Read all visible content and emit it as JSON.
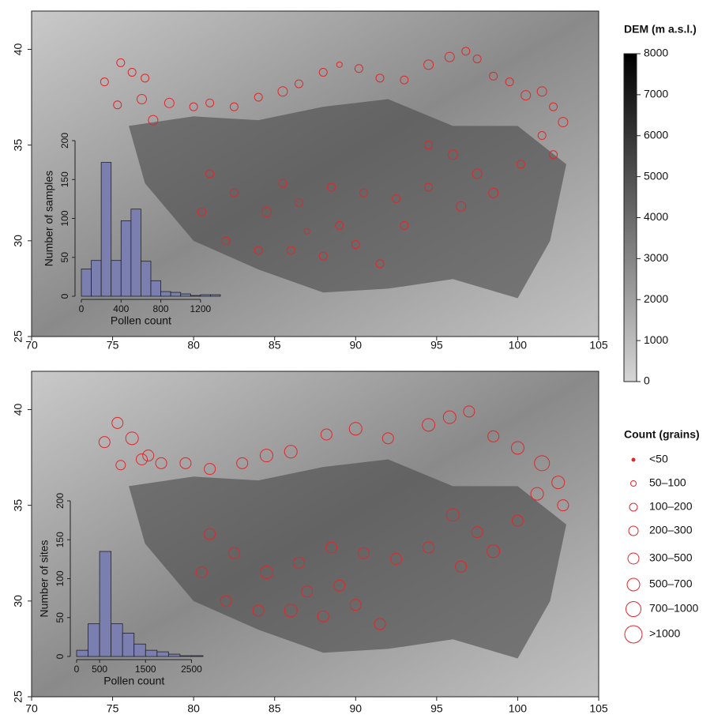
{
  "maps": [
    {
      "xlim": [
        70,
        105
      ],
      "ylim": [
        25,
        42
      ],
      "xticks": [
        70,
        75,
        80,
        85,
        90,
        95,
        100,
        105
      ],
      "yticks": [
        25,
        30,
        35,
        40
      ],
      "sites": {
        "lon": [
          74.5,
          75.5,
          76.2,
          77,
          75.3,
          76.8,
          77.5,
          78.5,
          80,
          81,
          82.5,
          84,
          85.5,
          86.5,
          88,
          89,
          90.2,
          91.5,
          93,
          94.5,
          95.8,
          96.8,
          97.5,
          98.5,
          99.5,
          100.5,
          101.5,
          102.2,
          102.8,
          101.5,
          102.2,
          100.2,
          96,
          97.5,
          98.5,
          96.5,
          94.5,
          92.5,
          90.5,
          88.5,
          86.5,
          84.5,
          82.5,
          81,
          80.5,
          82,
          84,
          86,
          88,
          90,
          91.5,
          89,
          87,
          85.5,
          93,
          94.5
        ],
        "lat": [
          38.3,
          39.3,
          38.8,
          38.5,
          37.1,
          37.4,
          36.3,
          37.2,
          37,
          37.2,
          37,
          37.5,
          37.8,
          38.2,
          38.8,
          39.2,
          39,
          38.5,
          38.4,
          39.2,
          39.6,
          39.9,
          39.5,
          38.6,
          38.3,
          37.6,
          37.8,
          37,
          36.2,
          35.5,
          34.5,
          34,
          34.5,
          33.5,
          32.5,
          31.8,
          32.8,
          32.2,
          32.5,
          32.8,
          32,
          31.5,
          32.5,
          33.5,
          31.5,
          30,
          29.5,
          29.5,
          29.2,
          29.8,
          28.8,
          30.8,
          30.5,
          33,
          30.8,
          35
        ],
        "count_class": [
          2,
          2,
          2,
          2,
          2,
          3,
          3,
          3,
          2,
          2,
          2,
          2,
          3,
          2,
          2,
          1,
          2,
          2,
          2,
          3,
          3,
          2,
          2,
          2,
          2,
          3,
          3,
          2,
          3,
          2,
          2,
          2,
          3,
          3,
          3,
          3,
          2,
          2,
          2,
          2,
          2,
          3,
          2,
          2,
          2,
          2,
          2,
          2,
          2,
          2,
          2,
          2,
          1,
          2,
          2,
          2
        ]
      },
      "histogram": {
        "type": "histogram",
        "bins": [
          0,
          100,
          200,
          300,
          400,
          500,
          600,
          700,
          800,
          900,
          1000,
          1100,
          1200,
          1300,
          1400
        ],
        "counts": [
          35,
          46,
          172,
          46,
          97,
          112,
          45,
          20,
          6,
          5,
          3,
          1,
          2,
          2
        ],
        "xlim": [
          0,
          1400
        ],
        "ylim": [
          0,
          200
        ],
        "xticks": [
          0,
          400,
          800,
          1200
        ],
        "yticks": [
          0,
          50,
          100,
          150,
          200
        ],
        "xlabel": "Pollen count",
        "ylabel": "Number of samples",
        "color": "#7b7fb0"
      }
    },
    {
      "xlim": [
        70,
        105
      ],
      "ylim": [
        25,
        42
      ],
      "xticks": [
        70,
        75,
        80,
        85,
        90,
        95,
        100,
        105
      ],
      "yticks": [
        25,
        30,
        35,
        40
      ],
      "sites": {
        "lon": [
          74.5,
          75.3,
          76.2,
          77.2,
          75.5,
          76.8,
          78,
          79.5,
          81,
          83,
          84.5,
          86,
          88.2,
          90,
          92,
          94.5,
          95.8,
          97,
          98.5,
          100,
          101.5,
          102.5,
          102.8,
          101.2,
          100,
          96,
          97.5,
          98.5,
          96.5,
          94.5,
          92.5,
          90.5,
          88.5,
          86.5,
          84.5,
          82.5,
          81,
          80.5,
          82,
          84,
          86,
          88,
          90,
          91.5,
          89,
          87
        ],
        "lat": [
          38.3,
          39.3,
          38.5,
          37.6,
          37.1,
          37.4,
          37.2,
          37.2,
          36.9,
          37.2,
          37.6,
          37.8,
          38.7,
          39,
          38.5,
          39.2,
          39.6,
          39.9,
          38.6,
          38,
          37.2,
          36.2,
          35,
          35.6,
          34.2,
          34.5,
          33.6,
          32.6,
          31.8,
          32.8,
          32.2,
          32.5,
          32.8,
          32,
          31.5,
          32.5,
          33.5,
          31.5,
          30,
          29.5,
          29.5,
          29.2,
          29.8,
          28.8,
          30.8,
          30.5
        ],
        "count_class": [
          4,
          4,
          5,
          4,
          3,
          4,
          4,
          4,
          4,
          4,
          5,
          5,
          4,
          5,
          4,
          5,
          5,
          4,
          4,
          5,
          6,
          5,
          4,
          5,
          4,
          5,
          4,
          5,
          4,
          4,
          4,
          4,
          4,
          4,
          5,
          4,
          4,
          4,
          4,
          4,
          5,
          4,
          4,
          4,
          4,
          4
        ]
      },
      "histogram": {
        "type": "histogram",
        "bins": [
          0,
          250,
          500,
          750,
          1000,
          1250,
          1500,
          1750,
          2000,
          2250,
          2500,
          2750
        ],
        "counts": [
          8,
          42,
          135,
          42,
          30,
          16,
          8,
          6,
          3,
          1,
          1
        ],
        "xlim": [
          0,
          2750
        ],
        "ylim": [
          0,
          200
        ],
        "xticks": [
          0,
          500,
          1500,
          2500
        ],
        "yticks": [
          0,
          50,
          100,
          150,
          200
        ],
        "xlabel": "Pollen count",
        "ylabel": "Number of sites",
        "color": "#7b7fb0"
      }
    }
  ],
  "dem_legend": {
    "title": "DEM (m a.s.l.)",
    "lim": [
      0,
      8000
    ],
    "ticks": [
      0,
      1000,
      2000,
      3000,
      4000,
      5000,
      6000,
      7000,
      8000
    ]
  },
  "count_legend": {
    "title": "Count (grains)",
    "classes": [
      "<50",
      "50–100",
      "100–200",
      "200–300",
      "300–500",
      "500–700",
      "700–1000",
      ">1000"
    ],
    "color": "#e0272b"
  }
}
